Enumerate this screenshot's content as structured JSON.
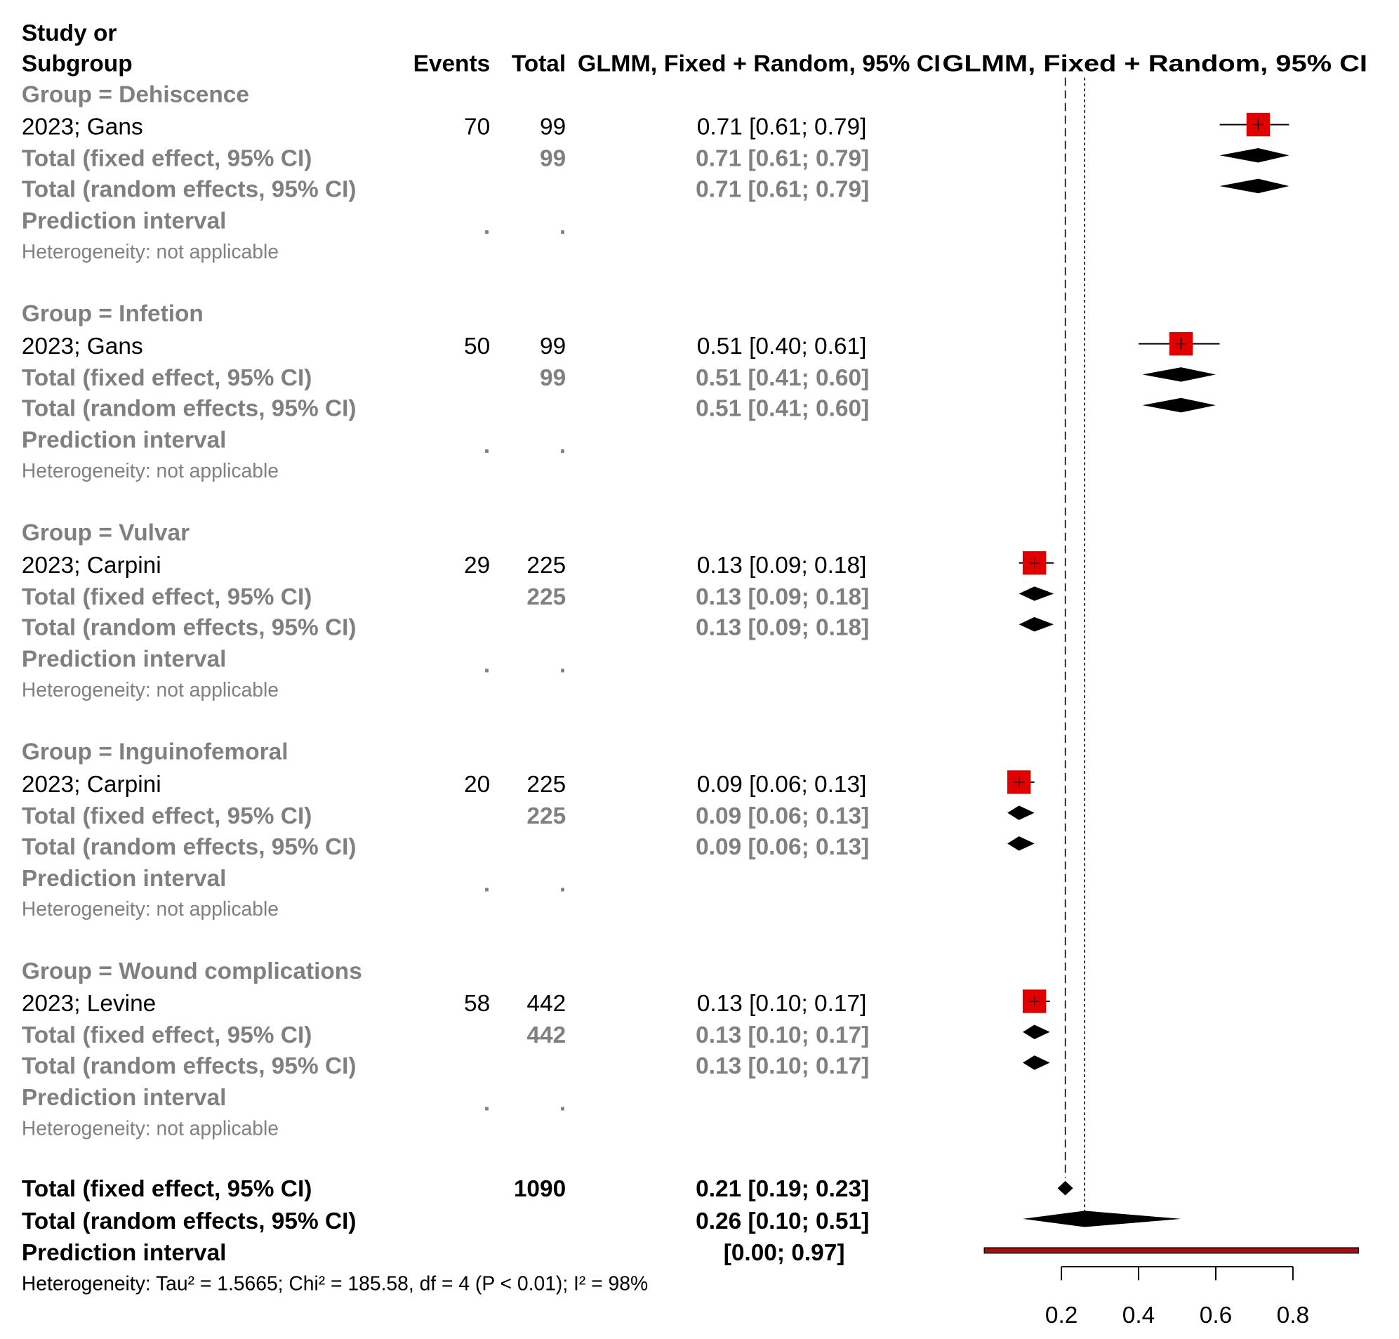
{
  "header": {
    "study_line1": "Study or",
    "study_line2": "Subgroup",
    "events": "Events",
    "total": "Total",
    "ci1": "GLMM, Fixed + Random, 95% CI",
    "ci2": "GLMM, Fixed + Random, 95% CI"
  },
  "labels": {
    "fixed": "Total (fixed effect, 95% CI)",
    "random": "Total (random effects, 95% CI)",
    "pi": "Prediction interval",
    "pi_dot": ".",
    "het": "Heterogeneity: not applicable"
  },
  "colors": {
    "square": "#e00000",
    "diamond": "#000000",
    "prediction": "#a50f0f",
    "subgroup_text": "#808080"
  },
  "chart_data": {
    "type": "forest",
    "measure": "proportion",
    "groups": [
      {
        "label": "Group = Dehiscence",
        "study": {
          "label": "2023; Gans",
          "events": "70",
          "total": "99",
          "est": 0.71,
          "lo": 0.61,
          "hi": 0.79,
          "text": "0.71 [0.61; 0.79]"
        },
        "fixed": {
          "total": "99",
          "est": 0.71,
          "lo": 0.61,
          "hi": 0.79,
          "text": "0.71 [0.61; 0.79]"
        },
        "random": {
          "est": 0.71,
          "lo": 0.61,
          "hi": 0.79,
          "text": "0.71 [0.61; 0.79]"
        }
      },
      {
        "label": "Group = Infetion",
        "study": {
          "label": "2023; Gans",
          "events": "50",
          "total": "99",
          "est": 0.51,
          "lo": 0.4,
          "hi": 0.61,
          "text": "0.51 [0.40; 0.61]"
        },
        "fixed": {
          "total": "99",
          "est": 0.51,
          "lo": 0.41,
          "hi": 0.6,
          "text": "0.51 [0.41; 0.60]"
        },
        "random": {
          "est": 0.51,
          "lo": 0.41,
          "hi": 0.6,
          "text": "0.51 [0.41; 0.60]"
        }
      },
      {
        "label": "Group = Vulvar",
        "study": {
          "label": "2023; Carpini",
          "events": "29",
          "total": "225",
          "est": 0.13,
          "lo": 0.09,
          "hi": 0.18,
          "text": "0.13 [0.09; 0.18]"
        },
        "fixed": {
          "total": "225",
          "est": 0.13,
          "lo": 0.09,
          "hi": 0.18,
          "text": "0.13 [0.09; 0.18]"
        },
        "random": {
          "est": 0.13,
          "lo": 0.09,
          "hi": 0.18,
          "text": "0.13 [0.09; 0.18]"
        }
      },
      {
        "label": "Group = Inguinofemoral",
        "study": {
          "label": "2023; Carpini",
          "events": "20",
          "total": "225",
          "est": 0.09,
          "lo": 0.06,
          "hi": 0.13,
          "text": "0.09 [0.06; 0.13]"
        },
        "fixed": {
          "total": "225",
          "est": 0.09,
          "lo": 0.06,
          "hi": 0.13,
          "text": "0.09 [0.06; 0.13]"
        },
        "random": {
          "est": 0.09,
          "lo": 0.06,
          "hi": 0.13,
          "text": "0.09 [0.06; 0.13]"
        }
      },
      {
        "label": "Group = Wound complications",
        "study": {
          "label": "2023; Levine",
          "events": "58",
          "total": "442",
          "est": 0.13,
          "lo": 0.1,
          "hi": 0.17,
          "text": "0.13 [0.10; 0.17]"
        },
        "fixed": {
          "total": "442",
          "est": 0.13,
          "lo": 0.1,
          "hi": 0.17,
          "text": "0.13 [0.10; 0.17]"
        },
        "random": {
          "est": 0.13,
          "lo": 0.1,
          "hi": 0.17,
          "text": "0.13 [0.10; 0.17]"
        }
      }
    ],
    "overall": {
      "fixed": {
        "label": "Total (fixed effect, 95% CI)",
        "total": "1090",
        "est": 0.21,
        "lo": 0.19,
        "hi": 0.23,
        "text": "0.21 [0.19; 0.23]"
      },
      "random": {
        "label": "Total (random effects, 95% CI)",
        "est": 0.26,
        "lo": 0.1,
        "hi": 0.51,
        "text": "0.26 [0.10; 0.51]"
      },
      "prediction": {
        "label": "Prediction interval",
        "lo": 0.0,
        "hi": 0.97,
        "text": "[0.00; 0.97]"
      },
      "heterogeneity": "Heterogeneity: Tau² = 1.5665; Chi² = 185.58, df = 4 (P < 0.01); I² = 98%"
    },
    "axis": {
      "ticks": [
        0.2,
        0.4,
        0.6,
        0.8
      ],
      "tick_labels": [
        "0.2",
        "0.4",
        "0.6",
        "0.8"
      ]
    }
  }
}
